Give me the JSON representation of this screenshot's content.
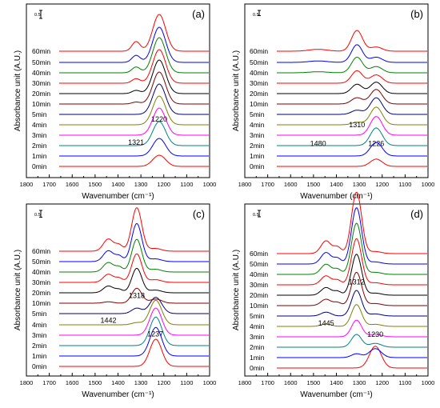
{
  "chart_data": [
    {
      "type": "line",
      "panel_label": "(a)",
      "xlabel": "Wavenumber (cm⁻¹)",
      "ylabel": "Absorbance unit (A.U.)",
      "xlim": [
        1800,
        1000
      ],
      "x_ticks": [
        1800,
        1700,
        1600,
        1500,
        1400,
        1300,
        1200,
        1100,
        1000
      ],
      "x_tick_labels": [
        "1800",
        "1700",
        "1600",
        "1500",
        "1400",
        "1300",
        "1200",
        "1100",
        "1000"
      ],
      "scale_bar_label": "0.5",
      "scale_bar_value": 0.5,
      "grid": false,
      "series": [
        {
          "name": "0min",
          "color": "#ff0000",
          "peaks": [
            {
              "x": 1220,
              "h": 0.35,
              "w": 28
            }
          ]
        },
        {
          "name": "1min",
          "color": "#0000ff",
          "peaks": [
            {
              "x": 1220,
              "h": 0.55,
              "w": 28
            }
          ]
        },
        {
          "name": "2min",
          "color": "#008080",
          "peaks": [
            {
              "x": 1220,
              "h": 0.75,
              "w": 28
            }
          ]
        },
        {
          "name": "3min",
          "color": "#ff00ff",
          "peaks": [
            {
              "x": 1220,
              "h": 0.85,
              "w": 28
            }
          ]
        },
        {
          "name": "4min",
          "color": "#808000",
          "peaks": [
            {
              "x": 1220,
              "h": 0.9,
              "w": 28
            }
          ]
        },
        {
          "name": "5min",
          "color": "#000080",
          "peaks": [
            {
              "x": 1220,
              "h": 0.95,
              "w": 28
            }
          ]
        },
        {
          "name": "10min",
          "color": "#800000",
          "peaks": [
            {
              "x": 1220,
              "h": 1.0,
              "w": 28
            },
            {
              "x": 1321,
              "h": 0.06,
              "w": 18
            }
          ]
        },
        {
          "name": "20min",
          "color": "#000000",
          "peaks": [
            {
              "x": 1220,
              "h": 1.05,
              "w": 28
            },
            {
              "x": 1321,
              "h": 0.1,
              "w": 18
            }
          ]
        },
        {
          "name": "30min",
          "color": "#ff0000",
          "peaks": [
            {
              "x": 1220,
              "h": 1.05,
              "w": 28
            },
            {
              "x": 1321,
              "h": 0.14,
              "w": 18
            }
          ]
        },
        {
          "name": "40min",
          "color": "#008000",
          "peaks": [
            {
              "x": 1220,
              "h": 1.1,
              "w": 28
            },
            {
              "x": 1321,
              "h": 0.18,
              "w": 18
            }
          ]
        },
        {
          "name": "50min",
          "color": "#0000ff",
          "peaks": [
            {
              "x": 1220,
              "h": 1.1,
              "w": 28
            },
            {
              "x": 1321,
              "h": 0.22,
              "w": 18
            }
          ]
        },
        {
          "name": "60min",
          "color": "#ff0000",
          "peaks": [
            {
              "x": 1220,
              "h": 1.15,
              "w": 28
            },
            {
              "x": 1321,
              "h": 0.3,
              "w": 18
            }
          ]
        }
      ],
      "annotations": [
        {
          "text": "1321",
          "x": 1321,
          "y": 0.62
        },
        {
          "text": "1220",
          "x": 1220,
          "y": 1.35
        }
      ]
    },
    {
      "type": "line",
      "panel_label": "(b)",
      "xlabel": "Wavenumber (cm⁻¹)",
      "ylabel": "Absorbance unit (A.U.)",
      "xlim": [
        1800,
        1000
      ],
      "x_ticks": [
        1800,
        1700,
        1600,
        1500,
        1400,
        1300,
        1200,
        1100,
        1000
      ],
      "x_tick_labels": [
        "1800",
        "1700",
        "1600",
        "1500",
        "1400",
        "1300",
        "1200",
        "1100",
        "1000"
      ],
      "scale_bar_label": "0.5",
      "scale_bar_value": 0.5,
      "grid": false,
      "series": [
        {
          "name": "0min",
          "color": "#ff0000",
          "peaks": [
            {
              "x": 1226,
              "h": 0.35,
              "w": 26
            }
          ]
        },
        {
          "name": "1min",
          "color": "#0000ff",
          "peaks": [
            {
              "x": 1226,
              "h": 0.65,
              "w": 26
            }
          ]
        },
        {
          "name": "2min",
          "color": "#008080",
          "peaks": [
            {
              "x": 1226,
              "h": 0.85,
              "w": 26
            }
          ]
        },
        {
          "name": "3min",
          "color": "#ff00ff",
          "peaks": [
            {
              "x": 1226,
              "h": 0.9,
              "w": 26
            }
          ]
        },
        {
          "name": "4min",
          "color": "#808000",
          "peaks": [
            {
              "x": 1226,
              "h": 0.85,
              "w": 26
            },
            {
              "x": 1310,
              "h": 0.12,
              "w": 24
            }
          ]
        },
        {
          "name": "5min",
          "color": "#000080",
          "peaks": [
            {
              "x": 1226,
              "h": 0.8,
              "w": 26
            },
            {
              "x": 1310,
              "h": 0.2,
              "w": 24
            }
          ]
        },
        {
          "name": "10min",
          "color": "#800000",
          "peaks": [
            {
              "x": 1226,
              "h": 0.7,
              "w": 26
            },
            {
              "x": 1310,
              "h": 0.3,
              "w": 24
            }
          ]
        },
        {
          "name": "20min",
          "color": "#000000",
          "peaks": [
            {
              "x": 1226,
              "h": 0.55,
              "w": 26
            },
            {
              "x": 1310,
              "h": 0.45,
              "w": 24
            }
          ]
        },
        {
          "name": "30min",
          "color": "#ff0000",
          "peaks": [
            {
              "x": 1226,
              "h": 0.4,
              "w": 26
            },
            {
              "x": 1310,
              "h": 0.6,
              "w": 24
            }
          ]
        },
        {
          "name": "40min",
          "color": "#008000",
          "peaks": [
            {
              "x": 1226,
              "h": 0.3,
              "w": 26
            },
            {
              "x": 1310,
              "h": 0.75,
              "w": 24
            },
            {
              "x": 1480,
              "h": 0.05,
              "w": 40
            }
          ]
        },
        {
          "name": "50min",
          "color": "#0000ff",
          "peaks": [
            {
              "x": 1226,
              "h": 0.25,
              "w": 26
            },
            {
              "x": 1310,
              "h": 0.85,
              "w": 24
            },
            {
              "x": 1480,
              "h": 0.07,
              "w": 40
            }
          ]
        },
        {
          "name": "60min",
          "color": "#ff0000",
          "peaks": [
            {
              "x": 1226,
              "h": 0.2,
              "w": 26
            },
            {
              "x": 1310,
              "h": 1.0,
              "w": 24
            },
            {
              "x": 1480,
              "h": 0.09,
              "w": 40
            }
          ]
        }
      ],
      "annotations": [
        {
          "text": "1480",
          "x": 1480,
          "y": 0.9
        },
        {
          "text": "1310",
          "x": 1310,
          "y": 1.8
        },
        {
          "text": "1226",
          "x": 1226,
          "y": 0.9
        }
      ]
    },
    {
      "type": "line",
      "panel_label": "(c)",
      "xlabel": "Wavenumber (cm⁻¹)",
      "ylabel": "Absorbance unit (A.U.)",
      "xlim": [
        1800,
        1000
      ],
      "x_ticks": [
        1800,
        1700,
        1600,
        1500,
        1400,
        1300,
        1200,
        1100,
        1000
      ],
      "x_tick_labels": [
        "1800",
        "1700",
        "1600",
        "1500",
        "1400",
        "1300",
        "1200",
        "1100",
        "1000"
      ],
      "scale_bar_label": "0.5",
      "scale_bar_value": 0.5,
      "grid": false,
      "series": [
        {
          "name": "0min",
          "color": "#ff0000",
          "peaks": [
            {
              "x": 1235,
              "h": 1.0,
              "w": 26
            }
          ]
        },
        {
          "name": "1min",
          "color": "#0000ff",
          "peaks": [
            {
              "x": 1235,
              "h": 1.05,
              "w": 26
            }
          ]
        },
        {
          "name": "2min",
          "color": "#008080",
          "peaks": [
            {
              "x": 1235,
              "h": 1.05,
              "w": 26
            }
          ]
        },
        {
          "name": "3min",
          "color": "#ff00ff",
          "peaks": [
            {
              "x": 1235,
              "h": 1.0,
              "w": 26
            }
          ]
        },
        {
          "name": "4min",
          "color": "#808000",
          "peaks": [
            {
              "x": 1235,
              "h": 0.9,
              "w": 26
            },
            {
              "x": 1318,
              "h": 0.08,
              "w": 22
            }
          ]
        },
        {
          "name": "5min",
          "color": "#000080",
          "peaks": [
            {
              "x": 1235,
              "h": 0.6,
              "w": 26
            },
            {
              "x": 1318,
              "h": 0.2,
              "w": 22
            }
          ]
        },
        {
          "name": "10min",
          "color": "#800000",
          "peaks": [
            {
              "x": 1235,
              "h": 0.15,
              "w": 26
            },
            {
              "x": 1318,
              "h": 0.55,
              "w": 22
            },
            {
              "x": 1442,
              "h": 0.05,
              "w": 22
            }
          ]
        },
        {
          "name": "20min",
          "color": "#000000",
          "peaks": [
            {
              "x": 1237,
              "h": 0.1,
              "w": 26
            },
            {
              "x": 1318,
              "h": 0.9,
              "w": 22
            },
            {
              "x": 1442,
              "h": 0.25,
              "w": 22
            },
            {
              "x": 1395,
              "h": 0.12,
              "w": 16
            }
          ]
        },
        {
          "name": "30min",
          "color": "#ff0000",
          "peaks": [
            {
              "x": 1237,
              "h": 0.1,
              "w": 26
            },
            {
              "x": 1318,
              "h": 1.05,
              "w": 22
            },
            {
              "x": 1442,
              "h": 0.3,
              "w": 22
            },
            {
              "x": 1395,
              "h": 0.15,
              "w": 16
            }
          ]
        },
        {
          "name": "40min",
          "color": "#008000",
          "peaks": [
            {
              "x": 1237,
              "h": 0.1,
              "w": 26
            },
            {
              "x": 1318,
              "h": 1.2,
              "w": 22
            },
            {
              "x": 1442,
              "h": 0.35,
              "w": 22
            },
            {
              "x": 1395,
              "h": 0.18,
              "w": 16
            }
          ]
        },
        {
          "name": "50min",
          "color": "#0000ff",
          "peaks": [
            {
              "x": 1237,
              "h": 0.1,
              "w": 26
            },
            {
              "x": 1318,
              "h": 1.4,
              "w": 22
            },
            {
              "x": 1442,
              "h": 0.4,
              "w": 22
            },
            {
              "x": 1395,
              "h": 0.2,
              "w": 16
            }
          ]
        },
        {
          "name": "60min",
          "color": "#ff0000",
          "peaks": [
            {
              "x": 1237,
              "h": 0.1,
              "w": 26
            },
            {
              "x": 1318,
              "h": 1.6,
              "w": 22
            },
            {
              "x": 1442,
              "h": 0.45,
              "w": 22
            },
            {
              "x": 1395,
              "h": 0.22,
              "w": 16
            }
          ]
        }
      ],
      "annotations": [
        {
          "text": "1442",
          "x": 1442,
          "y": 1.55
        },
        {
          "text": "1318",
          "x": 1318,
          "y": 2.45
        },
        {
          "text": "1237",
          "x": 1237,
          "y": 1.05
        }
      ]
    },
    {
      "type": "line",
      "panel_label": "(d)",
      "xlabel": "Wavenumber (cm⁻¹)",
      "ylabel": "Absorbance unit (A.U.)",
      "xlim": [
        1800,
        1000
      ],
      "x_ticks": [
        1800,
        1700,
        1600,
        1500,
        1400,
        1300,
        1200,
        1100,
        1000
      ],
      "x_tick_labels": [
        "1800",
        "1700",
        "1600",
        "1500",
        "1400",
        "1300",
        "1200",
        "1100",
        "1000"
      ],
      "scale_bar_label": "0.5",
      "scale_bar_value": 0.5,
      "grid": false,
      "series": [
        {
          "name": "0min",
          "color": "#ff0000",
          "peaks": [
            {
              "x": 1230,
              "h": 0.85,
              "w": 26
            }
          ]
        },
        {
          "name": "1min",
          "color": "#0000ff",
          "peaks": [
            {
              "x": 1230,
              "h": 0.35,
              "w": 26
            },
            {
              "x": 1312,
              "h": 0.15,
              "w": 22
            }
          ]
        },
        {
          "name": "2min",
          "color": "#008080",
          "peaks": [
            {
              "x": 1230,
              "h": 0.15,
              "w": 26
            },
            {
              "x": 1312,
              "h": 0.5,
              "w": 22
            }
          ]
        },
        {
          "name": "3min",
          "color": "#ff00ff",
          "peaks": [
            {
              "x": 1230,
              "h": 0.1,
              "w": 26
            },
            {
              "x": 1312,
              "h": 0.65,
              "w": 22
            }
          ]
        },
        {
          "name": "4min",
          "color": "#808000",
          "peaks": [
            {
              "x": 1230,
              "h": 0.08,
              "w": 26
            },
            {
              "x": 1312,
              "h": 0.85,
              "w": 22
            },
            {
              "x": 1445,
              "h": 0.1,
              "w": 22
            }
          ]
        },
        {
          "name": "5min",
          "color": "#000080",
          "peaks": [
            {
              "x": 1230,
              "h": 0.08,
              "w": 26
            },
            {
              "x": 1312,
              "h": 1.0,
              "w": 22
            },
            {
              "x": 1445,
              "h": 0.15,
              "w": 22
            }
          ]
        },
        {
          "name": "10min",
          "color": "#800000",
          "peaks": [
            {
              "x": 1230,
              "h": 0.08,
              "w": 26
            },
            {
              "x": 1312,
              "h": 1.3,
              "w": 22
            },
            {
              "x": 1445,
              "h": 0.25,
              "w": 22
            },
            {
              "x": 1395,
              "h": 0.12,
              "w": 16
            }
          ]
        },
        {
          "name": "20min",
          "color": "#000000",
          "peaks": [
            {
              "x": 1230,
              "h": 0.08,
              "w": 26
            },
            {
              "x": 1312,
              "h": 1.6,
              "w": 22
            },
            {
              "x": 1445,
              "h": 0.3,
              "w": 22
            },
            {
              "x": 1395,
              "h": 0.15,
              "w": 16
            }
          ]
        },
        {
          "name": "30min",
          "color": "#ff0000",
          "peaks": [
            {
              "x": 1230,
              "h": 0.08,
              "w": 26
            },
            {
              "x": 1312,
              "h": 1.8,
              "w": 22
            },
            {
              "x": 1445,
              "h": 0.35,
              "w": 22
            },
            {
              "x": 1395,
              "h": 0.18,
              "w": 16
            }
          ]
        },
        {
          "name": "40min",
          "color": "#008000",
          "peaks": [
            {
              "x": 1230,
              "h": 0.08,
              "w": 26
            },
            {
              "x": 1312,
              "h": 2.0,
              "w": 22
            },
            {
              "x": 1445,
              "h": 0.4,
              "w": 22
            },
            {
              "x": 1395,
              "h": 0.2,
              "w": 16
            }
          ]
        },
        {
          "name": "50min",
          "color": "#0000ff",
          "peaks": [
            {
              "x": 1230,
              "h": 0.08,
              "w": 26
            },
            {
              "x": 1312,
              "h": 2.2,
              "w": 22
            },
            {
              "x": 1445,
              "h": 0.45,
              "w": 22
            },
            {
              "x": 1395,
              "h": 0.22,
              "w": 16
            }
          ]
        },
        {
          "name": "60min",
          "color": "#ff0000",
          "peaks": [
            {
              "x": 1230,
              "h": 0.08,
              "w": 26
            },
            {
              "x": 1312,
              "h": 2.4,
              "w": 22
            },
            {
              "x": 1445,
              "h": 0.5,
              "w": 22
            },
            {
              "x": 1395,
              "h": 0.25,
              "w": 16
            }
          ]
        }
      ],
      "annotations": [
        {
          "text": "1445",
          "x": 1445,
          "y": 1.6
        },
        {
          "text": "1312",
          "x": 1312,
          "y": 3.2
        },
        {
          "text": "1230",
          "x": 1230,
          "y": 1.15
        }
      ]
    }
  ]
}
